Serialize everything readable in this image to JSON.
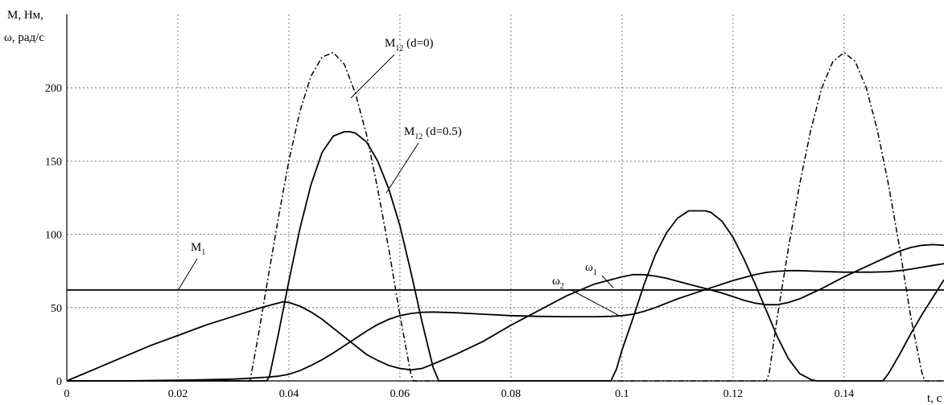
{
  "chart_data": {
    "type": "line",
    "ylabel_line1": "M, Нм,",
    "ylabel_line2": "ω, рад/с",
    "xlabel": "t, c",
    "xlim": [
      0,
      0.158
    ],
    "ylim": [
      0,
      250
    ],
    "xticks": [
      0,
      0.02,
      0.04,
      0.06,
      0.08,
      0.1,
      0.12,
      0.14
    ],
    "xtick_labels": [
      "0",
      "0.02",
      "0.04",
      "0.06",
      "0.08",
      "0.1",
      "0.12",
      "0.14"
    ],
    "yticks": [
      0,
      50,
      100,
      150,
      200
    ],
    "ytick_labels": [
      "0",
      "50",
      "100",
      "150",
      "200"
    ],
    "grid": true,
    "series": [
      {
        "name": "M12 (d=0)",
        "style": "dashdot",
        "x": [
          0,
          0.033,
          0.0345,
          0.036,
          0.038,
          0.04,
          0.042,
          0.044,
          0.046,
          0.048,
          0.05,
          0.052,
          0.054,
          0.056,
          0.058,
          0.06,
          0.062,
          0.0625,
          0.126,
          0.1265,
          0.128,
          0.13,
          0.132,
          0.134,
          0.136,
          0.138,
          0.14,
          0.142,
          0.144,
          0.146,
          0.148,
          0.15,
          0.152,
          0.154,
          0.1545,
          0.158
        ],
        "y": [
          0,
          0,
          31,
          65,
          109,
          150,
          184,
          208,
          221,
          224,
          216,
          196,
          168,
          131,
          90,
          45,
          4,
          0,
          0,
          5,
          44,
          91,
          134,
          171,
          200,
          218,
          224,
          218,
          200,
          171,
          134,
          91,
          44,
          6,
          0,
          0
        ]
      },
      {
        "name": "M12 (d=0.5)",
        "style": "solid",
        "x": [
          0,
          0.036,
          0.0365,
          0.038,
          0.04,
          0.042,
          0.044,
          0.046,
          0.048,
          0.05,
          0.051,
          0.052,
          0.054,
          0.056,
          0.058,
          0.06,
          0.062,
          0.064,
          0.066,
          0.067,
          0.098,
          0.099,
          0.1,
          0.102,
          0.104,
          0.106,
          0.108,
          0.11,
          0.112,
          0.114,
          0.115,
          0.116,
          0.118,
          0.12,
          0.122,
          0.124,
          0.126,
          0.128,
          0.13,
          0.132,
          0.134,
          0.135,
          0.147,
          0.148,
          0.15,
          0.152,
          0.154,
          0.156,
          0.158
        ],
        "y": [
          0,
          0,
          3,
          30,
          68,
          104,
          134,
          156,
          167,
          170,
          170,
          169,
          163,
          150,
          131,
          106,
          74,
          40,
          9,
          0,
          0,
          8,
          21,
          43,
          66,
          86,
          101,
          111,
          116,
          116,
          116,
          115,
          109,
          98,
          83,
          66,
          48,
          30,
          15,
          5,
          1,
          0,
          0,
          5,
          18,
          32,
          45,
          57,
          69
        ]
      },
      {
        "name": "M1",
        "style": "solid",
        "x": [
          0,
          0.158
        ],
        "y": [
          62,
          62
        ]
      },
      {
        "name": "ω1",
        "style": "solid",
        "x": [
          0,
          0.005,
          0.01,
          0.015,
          0.02,
          0.025,
          0.03,
          0.035,
          0.038,
          0.039,
          0.04,
          0.042,
          0.044,
          0.046,
          0.048,
          0.05,
          0.052,
          0.054,
          0.056,
          0.058,
          0.06,
          0.062,
          0.064,
          0.066,
          0.07,
          0.075,
          0.08,
          0.085,
          0.09,
          0.095,
          0.1,
          0.102,
          0.104,
          0.106,
          0.108,
          0.11,
          0.112,
          0.114,
          0.116,
          0.118,
          0.12,
          0.122,
          0.124,
          0.126,
          0.128,
          0.13,
          0.132,
          0.134,
          0.136,
          0.138,
          0.14,
          0.142,
          0.144,
          0.146,
          0.148,
          0.15,
          0.152,
          0.154,
          0.156,
          0.158
        ],
        "y": [
          0,
          8,
          16,
          24,
          31,
          38,
          44,
          50,
          53,
          54,
          53.5,
          51,
          47,
          42,
          36,
          30,
          24,
          18,
          14,
          10.5,
          8.5,
          7.5,
          8.5,
          11.5,
          18,
          27,
          38,
          48,
          58,
          66,
          71,
          72.5,
          72.5,
          71.5,
          70,
          68,
          66,
          64,
          62,
          60,
          57.5,
          55,
          53,
          52,
          52,
          53.5,
          56,
          59.5,
          63,
          67,
          71,
          74.5,
          78,
          81.5,
          85,
          88.5,
          91,
          92.5,
          93,
          92.5
        ]
      },
      {
        "name": "ω2",
        "style": "solid",
        "x": [
          0,
          0.01,
          0.02,
          0.025,
          0.03,
          0.033,
          0.036,
          0.038,
          0.04,
          0.042,
          0.044,
          0.046,
          0.048,
          0.05,
          0.052,
          0.054,
          0.056,
          0.058,
          0.06,
          0.062,
          0.064,
          0.066,
          0.07,
          0.075,
          0.08,
          0.085,
          0.09,
          0.095,
          0.098,
          0.1,
          0.102,
          0.104,
          0.106,
          0.108,
          0.11,
          0.112,
          0.114,
          0.116,
          0.118,
          0.12,
          0.122,
          0.124,
          0.126,
          0.128,
          0.13,
          0.132,
          0.135,
          0.14,
          0.145,
          0.148,
          0.15,
          0.152,
          0.154,
          0.156,
          0.158
        ],
        "y": [
          0,
          0,
          0.5,
          0.8,
          1.2,
          1.8,
          2.5,
          3.2,
          4.5,
          7,
          10.5,
          14.5,
          19,
          24,
          29,
          34,
          38.5,
          42,
          44.5,
          46,
          46.8,
          47,
          46.5,
          45.5,
          44.5,
          44,
          43.8,
          43.8,
          44,
          44.5,
          45.5,
          47.5,
          50,
          53,
          56,
          58.5,
          61,
          63.5,
          66,
          68.5,
          70.5,
          72.5,
          74,
          74.8,
          75.2,
          75.2,
          74.8,
          74.2,
          74.2,
          74.5,
          75.2,
          76.2,
          77.5,
          78.8,
          80
        ]
      }
    ],
    "annotations": [
      {
        "base": "M",
        "sub": "12",
        "rest": " (d=0)"
      },
      {
        "base": "M",
        "sub": "12",
        "rest": " (d=0.5)"
      },
      {
        "base": "M",
        "sub": "1",
        "rest": ""
      },
      {
        "base": "ω",
        "sub": "2",
        "rest": ""
      },
      {
        "base": "ω",
        "sub": "1",
        "rest": ""
      }
    ]
  }
}
